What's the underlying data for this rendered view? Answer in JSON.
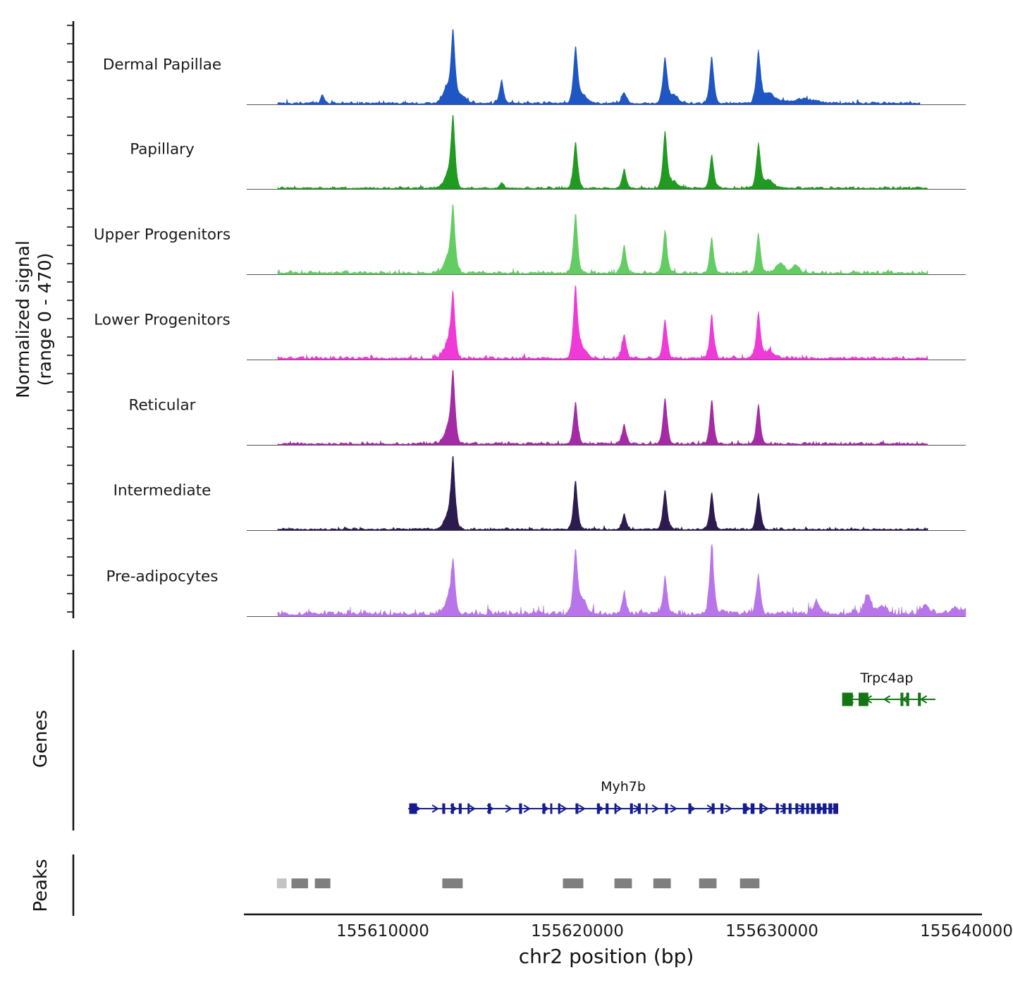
{
  "yaxis": {
    "label_line1": "Normalized signal",
    "label_line2": "(range 0 - 470)"
  },
  "xaxis": {
    "title": "chr2 position (bp)",
    "ticks": [
      {
        "bp": 155610000,
        "label": "155610000"
      },
      {
        "bp": 155620000,
        "label": "155620000"
      },
      {
        "bp": 155630000,
        "label": "155630000"
      },
      {
        "bp": 155640000,
        "label": "155640000"
      }
    ]
  },
  "sections": {
    "genes_label": "Genes",
    "peaks_label": "Peaks"
  },
  "chart_data": {
    "type": "area",
    "title": "",
    "xlabel": "chr2 position (bp)",
    "ylabel": "Normalized signal (range 0 - 470)",
    "signal_range": [
      0,
      470
    ],
    "genome_region": {
      "chrom": "chr2",
      "start": 155603000,
      "end": 155640500
    },
    "x_ticks": [
      155610000,
      155620000,
      155630000,
      155640000
    ],
    "tracks": [
      {
        "id": "dermal-papillae",
        "name": "Dermal Papillae",
        "color": "#1f56c4",
        "noise": 0.025,
        "span": [
          155604600,
          155637600
        ],
        "peaks": [
          [
            155606900,
            0.12,
            130
          ],
          [
            155613250,
            0.22,
            260
          ],
          [
            155613600,
            1.0,
            150
          ],
          [
            155614050,
            0.12,
            320
          ],
          [
            155616100,
            0.33,
            150
          ],
          [
            155619900,
            0.78,
            150
          ],
          [
            155620250,
            0.12,
            350
          ],
          [
            155622400,
            0.16,
            170
          ],
          [
            155624500,
            0.63,
            155
          ],
          [
            155624950,
            0.12,
            320
          ],
          [
            155626900,
            0.66,
            150
          ],
          [
            155629300,
            0.72,
            155
          ],
          [
            155629850,
            0.15,
            400
          ],
          [
            155631600,
            0.06,
            900
          ]
        ]
      },
      {
        "id": "papillary",
        "name": "Papillary",
        "color": "#219a21",
        "noise": 0.02,
        "span": [
          155604600,
          155638000
        ],
        "peaks": [
          [
            155613300,
            0.18,
            260
          ],
          [
            155613600,
            1.0,
            150
          ],
          [
            155616100,
            0.07,
            150
          ],
          [
            155619900,
            0.66,
            150
          ],
          [
            155622400,
            0.27,
            150
          ],
          [
            155624500,
            0.8,
            150
          ],
          [
            155624950,
            0.1,
            300
          ],
          [
            155626900,
            0.48,
            145
          ],
          [
            155629300,
            0.62,
            150
          ],
          [
            155629800,
            0.12,
            350
          ]
        ]
      },
      {
        "id": "upper-progenitors",
        "name": "Upper Progenitors",
        "color": "#63cc63",
        "noise": 0.03,
        "span": [
          155604600,
          155638000
        ],
        "peaks": [
          [
            155613300,
            0.2,
            260
          ],
          [
            155613600,
            0.93,
            150
          ],
          [
            155619900,
            0.85,
            150
          ],
          [
            155622400,
            0.4,
            150
          ],
          [
            155624500,
            0.6,
            150
          ],
          [
            155626900,
            0.5,
            145
          ],
          [
            155629300,
            0.56,
            150
          ],
          [
            155630400,
            0.14,
            300
          ],
          [
            155631200,
            0.12,
            250
          ]
        ]
      },
      {
        "id": "lower-progenitors",
        "name": "Lower Progenitors",
        "color": "#ee3ad6",
        "noise": 0.03,
        "span": [
          155604600,
          155638000
        ],
        "peaks": [
          [
            155613300,
            0.2,
            260
          ],
          [
            155613600,
            0.9,
            150
          ],
          [
            155619900,
            1.0,
            150
          ],
          [
            155620250,
            0.15,
            300
          ],
          [
            155622400,
            0.33,
            150
          ],
          [
            155624500,
            0.55,
            150
          ],
          [
            155626900,
            0.62,
            145
          ],
          [
            155629300,
            0.65,
            150
          ],
          [
            155629850,
            0.12,
            350
          ]
        ]
      },
      {
        "id": "reticular",
        "name": "Reticular",
        "color": "#a32ba3",
        "noise": 0.025,
        "span": [
          155604600,
          155638000
        ],
        "peaks": [
          [
            155613300,
            0.2,
            260
          ],
          [
            155613600,
            1.0,
            150
          ],
          [
            155619900,
            0.6,
            150
          ],
          [
            155622400,
            0.28,
            150
          ],
          [
            155624500,
            0.66,
            150
          ],
          [
            155626900,
            0.62,
            145
          ],
          [
            155629300,
            0.55,
            150
          ]
        ]
      },
      {
        "id": "intermediate",
        "name": "Intermediate",
        "color": "#2b1b4f",
        "noise": 0.02,
        "span": [
          155604600,
          155638000
        ],
        "peaks": [
          [
            155613300,
            0.18,
            260
          ],
          [
            155613600,
            1.0,
            150
          ],
          [
            155619900,
            0.68,
            150
          ],
          [
            155622400,
            0.22,
            150
          ],
          [
            155624500,
            0.56,
            150
          ],
          [
            155626900,
            0.52,
            145
          ],
          [
            155629300,
            0.5,
            150
          ]
        ]
      },
      {
        "id": "pre-adipocytes",
        "name": "Pre-adipocytes",
        "color": "#b875ea",
        "noise": 0.055,
        "span": [
          155604600,
          155640400
        ],
        "peaks": [
          [
            155613300,
            0.18,
            260
          ],
          [
            155613600,
            0.74,
            150
          ],
          [
            155619900,
            0.88,
            150
          ],
          [
            155620250,
            0.2,
            300
          ],
          [
            155622400,
            0.3,
            150
          ],
          [
            155624500,
            0.5,
            150
          ],
          [
            155626900,
            1.0,
            145
          ],
          [
            155629300,
            0.56,
            150
          ],
          [
            155632300,
            0.16,
            250
          ],
          [
            155634900,
            0.28,
            220
          ],
          [
            155635600,
            0.12,
            300
          ],
          [
            155637900,
            0.14,
            250
          ],
          [
            155639400,
            0.1,
            250
          ],
          [
            155640100,
            0.08,
            200
          ]
        ]
      }
    ],
    "genes": [
      {
        "id": "trpc4ap",
        "name": "Trpc4ap",
        "color": "#157515",
        "strand": "-",
        "start": 155633600,
        "end": 155638400,
        "exon_height": 19,
        "exons": [
          [
            155633600,
            155634150
          ],
          [
            155634450,
            155634950
          ],
          [
            155636600,
            155636750
          ],
          [
            155636900,
            155637050
          ],
          [
            155637500,
            155637650
          ]
        ]
      },
      {
        "id": "myh7b",
        "name": "Myh7b",
        "color": "#151c8f",
        "strand": "+",
        "start": 155611300,
        "end": 155633400,
        "exon_height": 15,
        "exons": [
          [
            155611350,
            155611750
          ],
          [
            155613050,
            155613200
          ],
          [
            155613500,
            155613650
          ],
          [
            155613900,
            155614050
          ],
          [
            155614350,
            155614450
          ],
          [
            155615400,
            155615550
          ],
          [
            155617000,
            155617150
          ],
          [
            155618200,
            155618350
          ],
          [
            155618600,
            155618700
          ],
          [
            155619000,
            155619120
          ],
          [
            155619900,
            155620050
          ],
          [
            155621000,
            155621150
          ],
          [
            155621450,
            155621600
          ],
          [
            155621900,
            155622000
          ],
          [
            155622700,
            155622850
          ],
          [
            155623100,
            155623250
          ],
          [
            155623500,
            155623600
          ],
          [
            155624500,
            155624650
          ],
          [
            155625700,
            155625850
          ],
          [
            155626900,
            155627050
          ],
          [
            155627350,
            155627500
          ],
          [
            155628500,
            155628700
          ],
          [
            155628900,
            155629100
          ],
          [
            155629350,
            155629500
          ],
          [
            155630200,
            155630350
          ],
          [
            155630550,
            155630700
          ],
          [
            155630850,
            155631000
          ],
          [
            155631200,
            155631350
          ],
          [
            155631500,
            155631650
          ],
          [
            155631750,
            155631900
          ],
          [
            155632000,
            155632200
          ],
          [
            155632300,
            155632500
          ],
          [
            155632600,
            155632800
          ],
          [
            155632900,
            155633100
          ],
          [
            155633150,
            155633400
          ]
        ]
      }
    ],
    "peak_boxes": [
      {
        "start": 155604550,
        "end": 155605050,
        "color": "#c4c4c4"
      },
      {
        "start": 155605300,
        "end": 155606150,
        "color": "#7f7f7f"
      },
      {
        "start": 155606500,
        "end": 155607300,
        "color": "#7f7f7f"
      },
      {
        "start": 155613050,
        "end": 155614100,
        "color": "#7f7f7f"
      },
      {
        "start": 155619250,
        "end": 155620300,
        "color": "#7f7f7f"
      },
      {
        "start": 155621900,
        "end": 155622800,
        "color": "#7f7f7f"
      },
      {
        "start": 155623900,
        "end": 155624800,
        "color": "#7f7f7f"
      },
      {
        "start": 155626250,
        "end": 155627150,
        "color": "#7f7f7f"
      },
      {
        "start": 155628350,
        "end": 155629350,
        "color": "#7f7f7f"
      }
    ]
  }
}
